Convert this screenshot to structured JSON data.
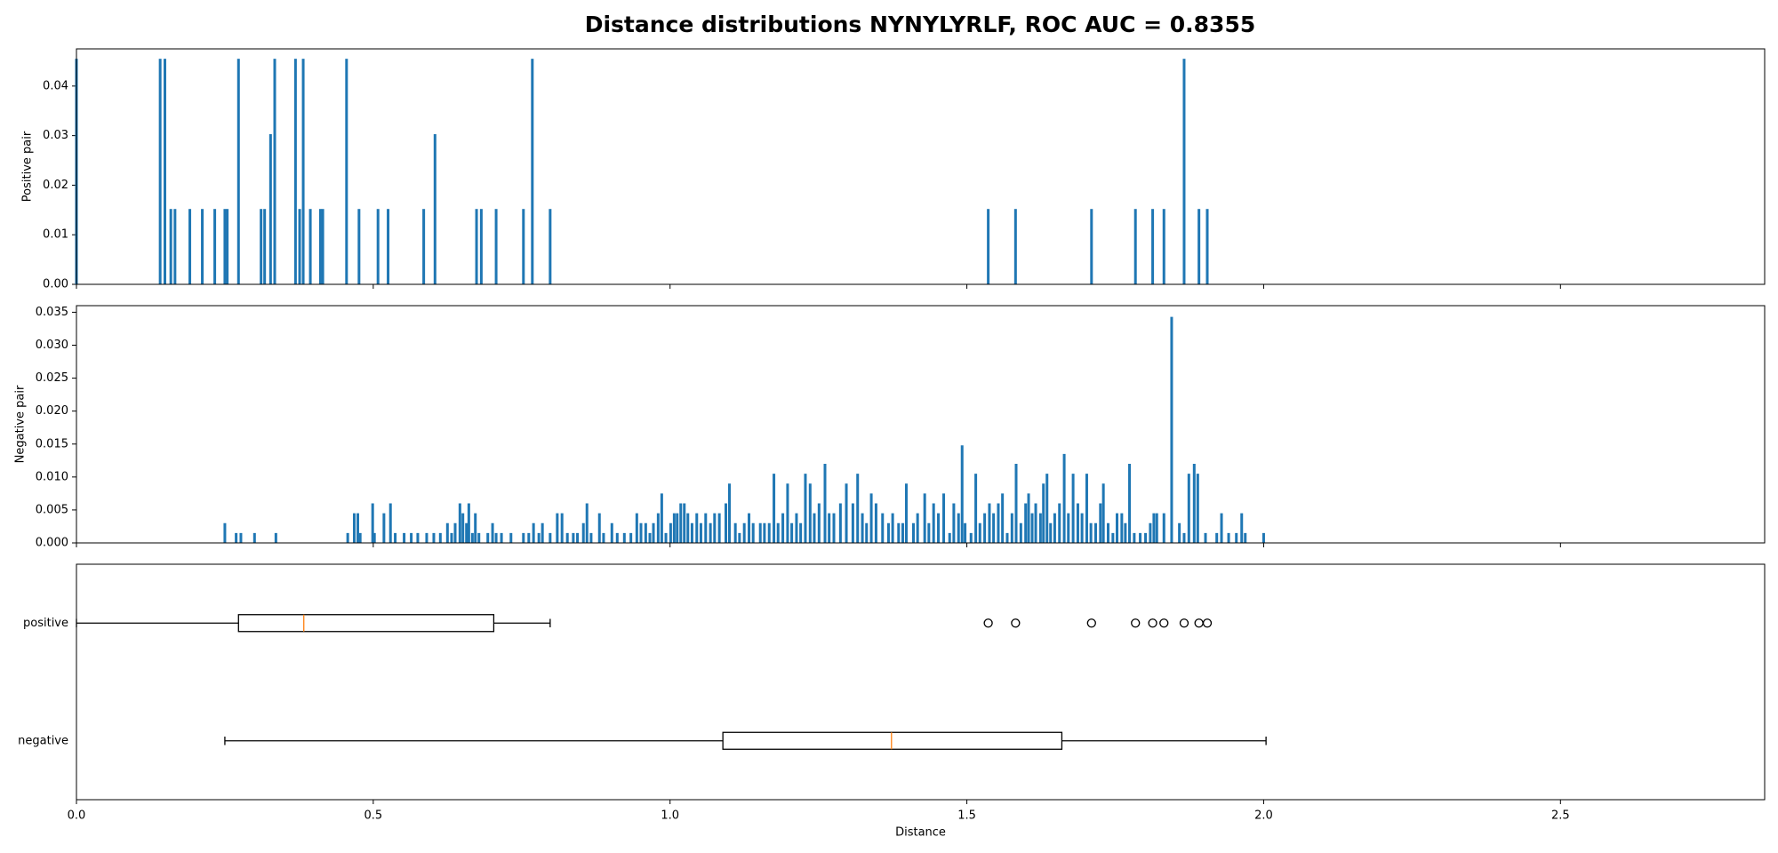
{
  "title": "Distance distributions NYNYLYRLF, ROC AUC = 0.8355",
  "chart_data": [
    {
      "type": "bar",
      "ylabel": "Positive pair",
      "color": "#1f77b4",
      "xlim": [
        0,
        2.844
      ],
      "ylim": [
        0,
        0.0475
      ],
      "yticks": [
        {
          "value": 0,
          "label": "0.00"
        },
        {
          "value": 0.01,
          "label": "0.01"
        },
        {
          "value": 0.02,
          "label": "0.02"
        },
        {
          "value": 0.03,
          "label": "0.03"
        },
        {
          "value": 0.04,
          "label": "0.04"
        }
      ],
      "x": [
        0.0,
        0.141,
        0.149,
        0.159,
        0.166,
        0.191,
        0.212,
        0.233,
        0.25,
        0.254,
        0.273,
        0.311,
        0.317,
        0.327,
        0.334,
        0.369,
        0.376,
        0.382,
        0.394,
        0.411,
        0.415,
        0.455,
        0.476,
        0.508,
        0.525,
        0.585,
        0.604,
        0.674,
        0.682,
        0.707,
        0.753,
        0.768,
        0.798,
        1.536,
        1.582,
        1.71,
        1.784,
        1.813,
        1.832,
        1.866,
        1.891,
        1.905
      ],
      "values": [
        0.0455,
        0.0455,
        0.0455,
        0.0152,
        0.0152,
        0.0152,
        0.0152,
        0.0152,
        0.0152,
        0.0152,
        0.0455,
        0.0152,
        0.0152,
        0.0303,
        0.0455,
        0.0455,
        0.0152,
        0.0455,
        0.0152,
        0.0152,
        0.0152,
        0.0455,
        0.0152,
        0.0152,
        0.0152,
        0.0152,
        0.0303,
        0.0152,
        0.0152,
        0.0152,
        0.0152,
        0.0455,
        0.0152,
        0.0152,
        0.0152,
        0.0152,
        0.0152,
        0.0152,
        0.0152,
        0.0455,
        0.0152,
        0.0152
      ]
    },
    {
      "type": "bar",
      "ylabel": "Negative pair",
      "color": "#1f77b4",
      "xlim": [
        0,
        2.844
      ],
      "ylim": [
        0,
        0.036
      ],
      "yticks": [
        {
          "value": 0,
          "label": "0.000"
        },
        {
          "value": 0.005,
          "label": "0.005"
        },
        {
          "value": 0.01,
          "label": "0.010"
        },
        {
          "value": 0.015,
          "label": "0.015"
        },
        {
          "value": 0.02,
          "label": "0.020"
        },
        {
          "value": 0.025,
          "label": "0.025"
        },
        {
          "value": 0.03,
          "label": "0.030"
        },
        {
          "value": 0.035,
          "label": "0.035"
        }
      ],
      "x": [
        0.25,
        0.269,
        0.277,
        0.3,
        0.336,
        0.457,
        0.468,
        0.474,
        0.478,
        0.499,
        0.502,
        0.518,
        0.529,
        0.537,
        0.552,
        0.564,
        0.575,
        0.59,
        0.602,
        0.613,
        0.625,
        0.632,
        0.638,
        0.646,
        0.651,
        0.657,
        0.661,
        0.667,
        0.672,
        0.678,
        0.693,
        0.701,
        0.707,
        0.716,
        0.732,
        0.753,
        0.762,
        0.77,
        0.779,
        0.785,
        0.798,
        0.81,
        0.818,
        0.827,
        0.837,
        0.844,
        0.854,
        0.86,
        0.867,
        0.881,
        0.888,
        0.902,
        0.911,
        0.923,
        0.934,
        0.944,
        0.951,
        0.959,
        0.966,
        0.972,
        0.98,
        0.986,
        0.993,
        1.001,
        1.007,
        1.012,
        1.018,
        1.024,
        1.03,
        1.037,
        1.045,
        1.052,
        1.06,
        1.068,
        1.075,
        1.083,
        1.094,
        1.1,
        1.11,
        1.117,
        1.125,
        1.133,
        1.14,
        1.152,
        1.159,
        1.167,
        1.175,
        1.182,
        1.19,
        1.198,
        1.205,
        1.213,
        1.22,
        1.228,
        1.236,
        1.243,
        1.251,
        1.261,
        1.268,
        1.276,
        1.287,
        1.297,
        1.308,
        1.316,
        1.324,
        1.331,
        1.339,
        1.347,
        1.358,
        1.368,
        1.375,
        1.385,
        1.392,
        1.398,
        1.41,
        1.417,
        1.429,
        1.436,
        1.444,
        1.452,
        1.461,
        1.471,
        1.478,
        1.486,
        1.492,
        1.497,
        1.507,
        1.515,
        1.522,
        1.53,
        1.538,
        1.545,
        1.553,
        1.56,
        1.568,
        1.576,
        1.583,
        1.591,
        1.599,
        1.604,
        1.61,
        1.616,
        1.624,
        1.629,
        1.635,
        1.641,
        1.648,
        1.656,
        1.664,
        1.671,
        1.679,
        1.687,
        1.694,
        1.702,
        1.709,
        1.717,
        1.725,
        1.73,
        1.738,
        1.746,
        1.753,
        1.761,
        1.767,
        1.774,
        1.782,
        1.792,
        1.801,
        1.809,
        1.815,
        1.82,
        1.832,
        1.845,
        1.858,
        1.866,
        1.874,
        1.883,
        1.889,
        1.902,
        1.921,
        1.929,
        1.941,
        1.954,
        1.963,
        1.969,
        2.0
      ],
      "values": [
        0.003,
        0.0015,
        0.0015,
        0.0015,
        0.0015,
        0.0015,
        0.0045,
        0.0045,
        0.0015,
        0.006,
        0.0015,
        0.0045,
        0.006,
        0.0015,
        0.0015,
        0.0015,
        0.0015,
        0.0015,
        0.0015,
        0.0015,
        0.003,
        0.0015,
        0.003,
        0.006,
        0.0045,
        0.003,
        0.006,
        0.0015,
        0.0045,
        0.0015,
        0.0015,
        0.003,
        0.0015,
        0.0015,
        0.0015,
        0.0015,
        0.0015,
        0.003,
        0.0015,
        0.003,
        0.0015,
        0.0045,
        0.0045,
        0.0015,
        0.0015,
        0.0015,
        0.003,
        0.006,
        0.0015,
        0.0045,
        0.0015,
        0.003,
        0.0015,
        0.0015,
        0.0015,
        0.0045,
        0.003,
        0.003,
        0.0015,
        0.003,
        0.0045,
        0.0075,
        0.0015,
        0.003,
        0.0045,
        0.0045,
        0.006,
        0.006,
        0.0045,
        0.003,
        0.0045,
        0.003,
        0.0045,
        0.003,
        0.0045,
        0.0045,
        0.006,
        0.009,
        0.003,
        0.0015,
        0.003,
        0.0045,
        0.003,
        0.003,
        0.003,
        0.003,
        0.0105,
        0.003,
        0.0045,
        0.009,
        0.003,
        0.0045,
        0.003,
        0.0105,
        0.009,
        0.0045,
        0.006,
        0.012,
        0.0045,
        0.0045,
        0.006,
        0.009,
        0.006,
        0.0105,
        0.0045,
        0.003,
        0.0075,
        0.006,
        0.0045,
        0.003,
        0.0045,
        0.003,
        0.003,
        0.009,
        0.003,
        0.0045,
        0.0075,
        0.003,
        0.006,
        0.0045,
        0.0075,
        0.0015,
        0.006,
        0.0045,
        0.0148,
        0.003,
        0.0015,
        0.0105,
        0.003,
        0.0045,
        0.006,
        0.0045,
        0.006,
        0.0075,
        0.0015,
        0.0045,
        0.012,
        0.003,
        0.006,
        0.0075,
        0.0045,
        0.006,
        0.0045,
        0.009,
        0.0105,
        0.003,
        0.0045,
        0.006,
        0.0135,
        0.0045,
        0.0105,
        0.006,
        0.0045,
        0.0105,
        0.003,
        0.003,
        0.006,
        0.009,
        0.003,
        0.0015,
        0.0045,
        0.0045,
        0.003,
        0.012,
        0.0015,
        0.0015,
        0.0015,
        0.003,
        0.0045,
        0.0045,
        0.0045,
        0.0343,
        0.003,
        0.0015,
        0.0105,
        0.012,
        0.0105,
        0.0015,
        0.0015,
        0.0045,
        0.0015,
        0.0015,
        0.0045,
        0.0015,
        0.0015
      ]
    },
    {
      "type": "box",
      "xlabel": "Distance",
      "color": "#000000",
      "median_color": "#ff7f0e",
      "xlim": [
        0,
        2.844
      ],
      "xticks": [
        {
          "value": 0,
          "label": "0.0"
        },
        {
          "value": 0.5,
          "label": "0.5"
        },
        {
          "value": 1,
          "label": "1.0"
        },
        {
          "value": 1.5,
          "label": "1.5"
        },
        {
          "value": 2,
          "label": "2.0"
        },
        {
          "value": 2.5,
          "label": "2.5"
        }
      ],
      "categories": [
        "positive",
        "negative"
      ],
      "boxes": [
        {
          "whislo": 0.0,
          "q1": 0.273,
          "med": 0.383,
          "q3": 0.703,
          "whishi": 0.798,
          "fliers": [
            1.536,
            1.582,
            1.71,
            1.784,
            1.813,
            1.832,
            1.866,
            1.891,
            1.905
          ]
        },
        {
          "whislo": 0.25,
          "q1": 1.089,
          "med": 1.373,
          "q3": 1.66,
          "whishi": 2.004
        }
      ]
    }
  ]
}
